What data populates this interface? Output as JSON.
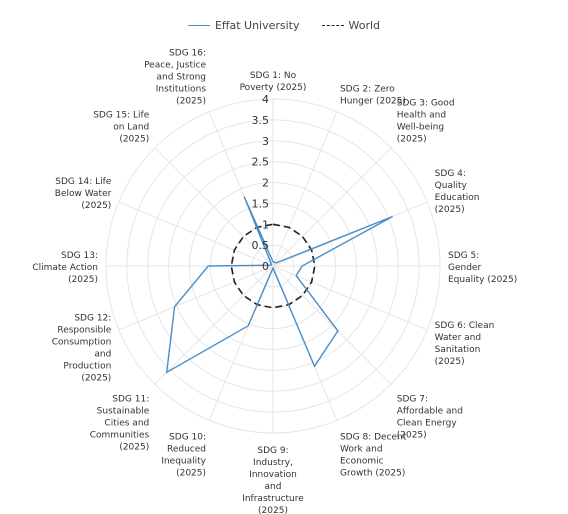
{
  "legend": [
    {
      "label": "Effat University",
      "style": "solid",
      "color": "#4a8ec8"
    },
    {
      "label": "World",
      "style": "dashed",
      "color": "#222222"
    }
  ],
  "chart_data": {
    "type": "radar",
    "title": "",
    "categories": [
      "SDG 1: No Poverty (2025)",
      "SDG 2: Zero Hunger (2025)",
      "SDG 3: Good Health and Well-being (2025)",
      "SDG 4: Quality Education (2025)",
      "SDG 5: Gender Equality (2025)",
      "SDG 6: Clean Water and Sanitation (2025)",
      "SDG 7: Affordable and Clean Energy (2025)",
      "SDG 8: Decent Work and Economic Growth (2025)",
      "SDG 9: Industry, Innovation and Infrastructure (2025)",
      "SDG 10: Reduced Inequality (2025)",
      "SDG 11: Sustainable Cities and Communities (2025)",
      "SDG 12: Responsible Consumption and Production (2025)",
      "SDG 13: Climate Action (2025)",
      "SDG 14: Life Below Water (2025)",
      "SDG 15: Life on Land (2025)",
      "SDG 16: Peace, Justice and Strong Institutions (2025)"
    ],
    "category_lines": [
      [
        "SDG 1: No",
        "Poverty (2025)"
      ],
      [
        "SDG 2: Zero",
        "Hunger (2025)"
      ],
      [
        "SDG 3: Good",
        "Health and",
        "Well-being",
        "(2025)"
      ],
      [
        "SDG 4:",
        "Quality",
        "Education",
        "(2025)"
      ],
      [
        "SDG 5:",
        "Gender",
        "Equality (2025)"
      ],
      [
        "SDG 6: Clean",
        "Water and",
        "Sanitation",
        "(2025)"
      ],
      [
        "SDG 7:",
        "Affordable and",
        "Clean Energy",
        "(2025)"
      ],
      [
        "SDG 8: Decent",
        "Work and",
        "Economic",
        "Growth (2025)"
      ],
      [
        "SDG 9:",
        "Industry,",
        "Innovation",
        "and",
        "Infrastructure",
        "(2025)"
      ],
      [
        "SDG 10:",
        "Reduced",
        "Inequality",
        "(2025)"
      ],
      [
        "SDG 11:",
        "Sustainable",
        "Cities and",
        "Communities",
        "(2025)"
      ],
      [
        "SDG 12:",
        "Responsible",
        "Consumption",
        "and",
        "Production",
        "(2025)"
      ],
      [
        "SDG 13:",
        "Climate Action",
        "(2025)"
      ],
      [
        "SDG 14: Life",
        "Below Water",
        "(2025)"
      ],
      [
        "SDG 15: Life",
        "on Land",
        "(2025)"
      ],
      [
        "SDG 16:",
        "Peace, Justice",
        "and Strong",
        "Institutions",
        "(2025)"
      ]
    ],
    "radial_ticks": [
      "0",
      "0.5",
      "1",
      "1.5",
      "2",
      "2.5",
      "3",
      "3.5",
      "4"
    ],
    "rlim": [
      0,
      4
    ],
    "series": [
      {
        "name": "Effat University",
        "style": "solid",
        "color": "#4a8ec8",
        "values": [
          0.1,
          0.1,
          0.1,
          3.1,
          0.7,
          0.6,
          2.2,
          2.6,
          0.05,
          1.55,
          3.6,
          2.55,
          1.55,
          0.05,
          0.05,
          1.8
        ]
      },
      {
        "name": "World",
        "style": "dashed",
        "color": "#222222",
        "values": [
          1.0,
          1.0,
          1.0,
          1.0,
          1.0,
          1.0,
          1.0,
          1.0,
          1.0,
          1.0,
          1.0,
          1.0,
          1.0,
          1.0,
          1.0,
          1.0
        ]
      }
    ],
    "grid": true,
    "legend_position": "top"
  }
}
